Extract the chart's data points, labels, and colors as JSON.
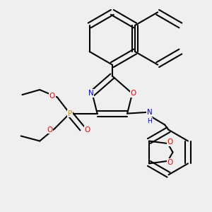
{
  "background_color": "#efefef",
  "bond_color": "#000000",
  "atom_colors": {
    "N": "#0000ee",
    "O": "#ee0000",
    "P": "#cc8800",
    "H": "#000000",
    "C": "#000000"
  },
  "figsize": [
    3.0,
    3.0
  ],
  "dpi": 100
}
